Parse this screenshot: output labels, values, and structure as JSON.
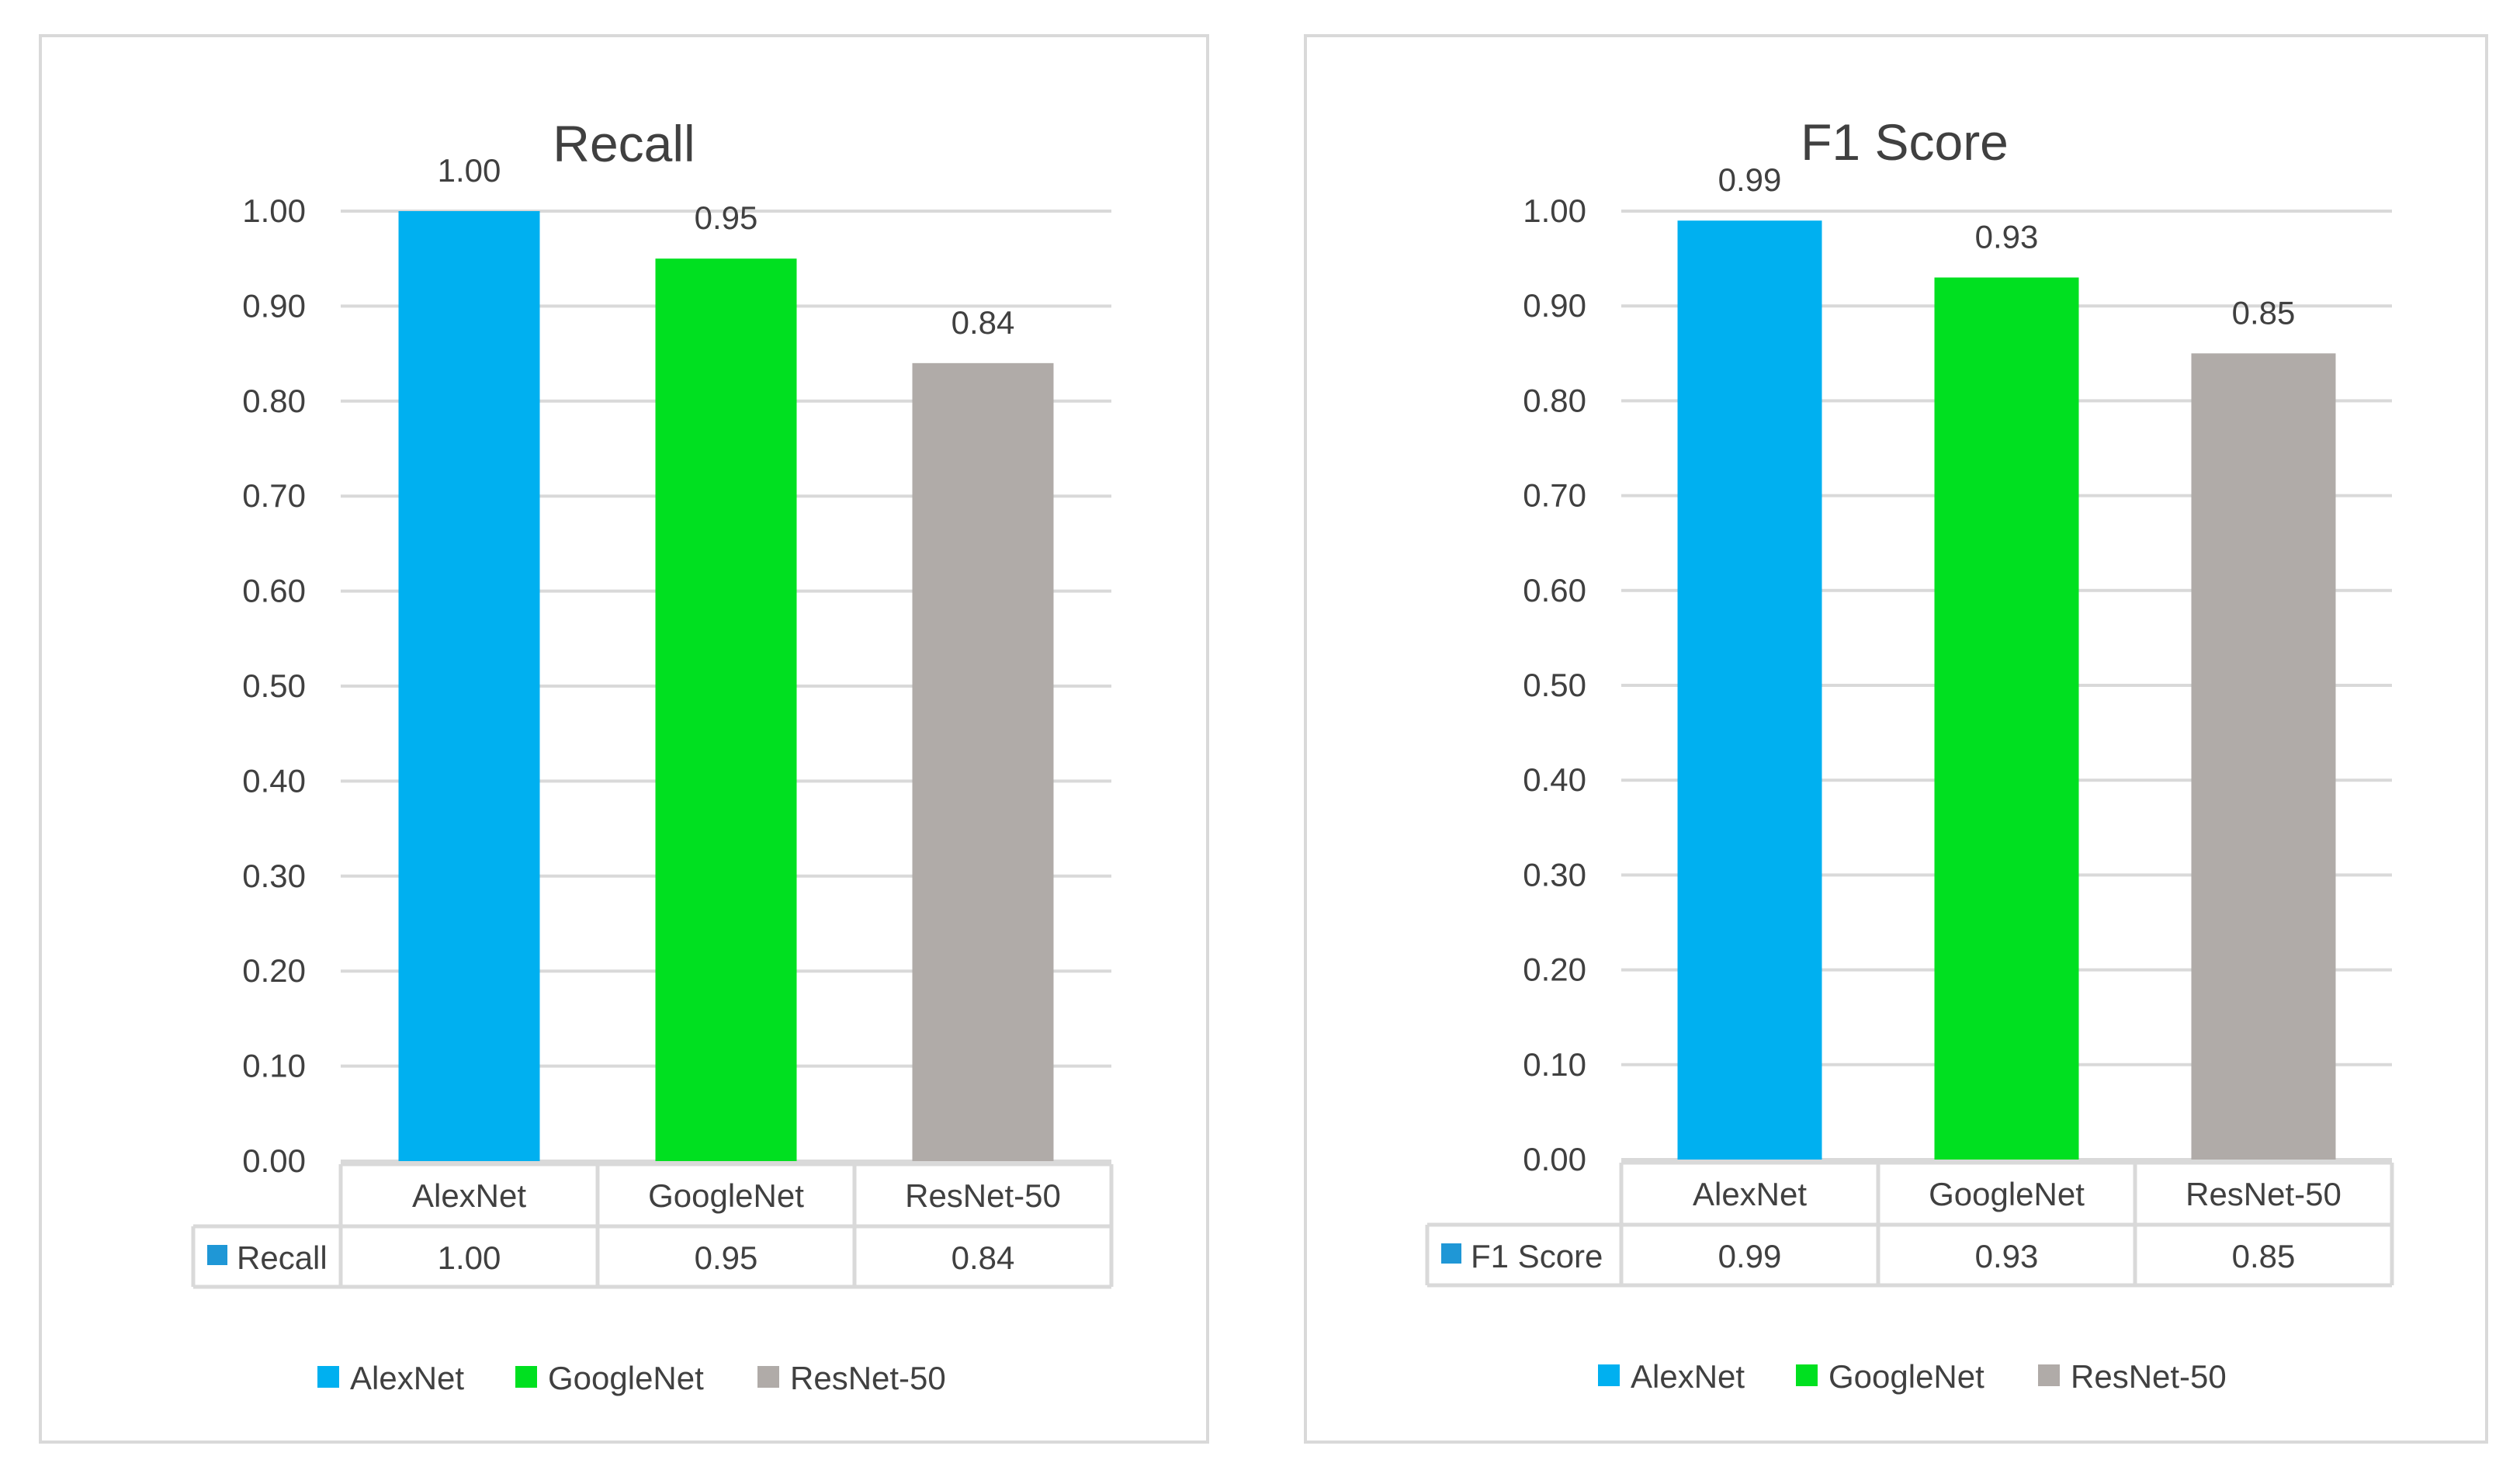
{
  "chart_data": [
    {
      "type": "bar",
      "title": "Recall",
      "categories": [
        "AlexNet",
        "GoogleNet",
        "ResNet-50"
      ],
      "series": [
        {
          "name": "Recall",
          "values": [
            1.0,
            0.95,
            0.84
          ]
        }
      ],
      "data_labels": [
        "1.00",
        "0.95",
        "0.84"
      ],
      "table_values": [
        "1.00",
        "0.95",
        "0.84"
      ],
      "colors": [
        "#00b0f0",
        "#00e020",
        "#b0aba8"
      ],
      "ylim": [
        0,
        1.0
      ],
      "yticks": [
        "0.00",
        "0.10",
        "0.20",
        "0.30",
        "0.40",
        "0.50",
        "0.60",
        "0.70",
        "0.80",
        "0.90",
        "1.00"
      ],
      "legend": [
        "AlexNet",
        "GoogleNet",
        "ResNet-50"
      ],
      "legend_position": "bottom",
      "data_table": true,
      "grid": true
    },
    {
      "type": "bar",
      "title": "F1 Score",
      "categories": [
        "AlexNet",
        "GoogleNet",
        "ResNet-50"
      ],
      "series": [
        {
          "name": "F1 Score",
          "values": [
            0.99,
            0.93,
            0.85
          ]
        }
      ],
      "data_labels": [
        "0.99",
        "0.93",
        "0.85"
      ],
      "table_values": [
        "0.99",
        "0.93",
        "0.85"
      ],
      "colors": [
        "#00b0f0",
        "#00e020",
        "#b0aba8"
      ],
      "ylim": [
        0,
        1.0
      ],
      "yticks": [
        "0.00",
        "0.10",
        "0.20",
        "0.30",
        "0.40",
        "0.50",
        "0.60",
        "0.70",
        "0.80",
        "0.90",
        "1.00"
      ],
      "legend": [
        "AlexNet",
        "GoogleNet",
        "ResNet-50"
      ],
      "legend_position": "bottom",
      "data_table": true,
      "grid": true
    }
  ],
  "series_key_color": "#1f97d6",
  "gridline_color": "#d9d9d9",
  "table_border_color": "#d9d9d9"
}
